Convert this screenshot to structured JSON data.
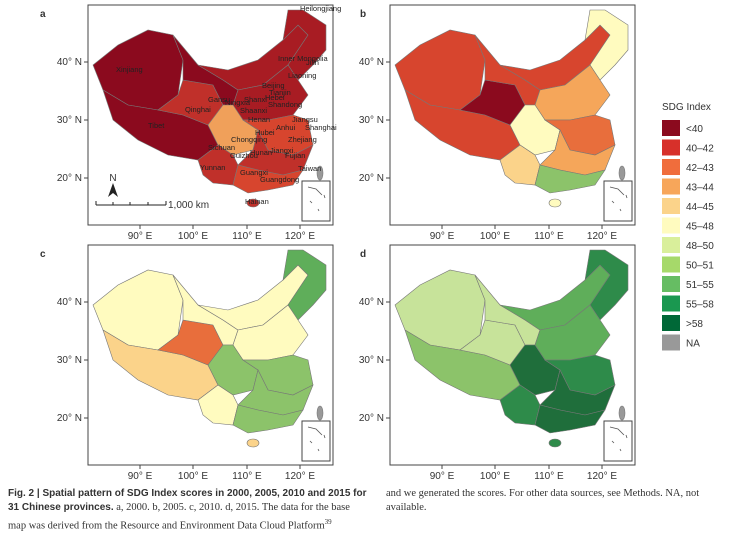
{
  "panels": [
    {
      "letter": "a",
      "lat_ticks": [
        "40° N",
        "30° N",
        "20° N"
      ],
      "lon_ticks": [
        "90° E",
        "100° E",
        "110° E",
        "120° E"
      ]
    },
    {
      "letter": "b",
      "lat_ticks": [
        "40° N",
        "30° N",
        "20° N"
      ],
      "lon_ticks": [
        "90° E",
        "100° E",
        "110° E",
        "120° E"
      ]
    },
    {
      "letter": "c",
      "lat_ticks": [
        "40° N",
        "30° N",
        "20° N"
      ],
      "lon_ticks": [
        "90° E",
        "100° E",
        "110° E",
        "120° E"
      ]
    },
    {
      "letter": "d",
      "lat_ticks": [
        "40° N",
        "30° N",
        "20° N"
      ],
      "lon_ticks": [
        "90° E",
        "100° E",
        "110° E",
        "120° E"
      ]
    }
  ],
  "panel_a": {
    "provinces": [
      "Heilongjiang",
      "Inner Mongolia",
      "Jilin",
      "Liaoning",
      "Xinjiang",
      "Qinghai",
      "Gansu",
      "Ningxia",
      "Shanxi",
      "Beijing",
      "Tianjin",
      "Hebei",
      "Shandong",
      "Shaanxi",
      "Henan",
      "Jiangsu",
      "Tibet",
      "Anhui",
      "Shanghai",
      "Hubei",
      "Chongqing",
      "Zhejiang",
      "Sichuan",
      "Guizhou",
      "Hunan",
      "Jiangxi",
      "Fujian",
      "Taiwan",
      "Yunnan",
      "Guangxi",
      "Guangdong",
      "Hainan"
    ],
    "scale": "1,000 km",
    "north": "N"
  },
  "legend": {
    "title": "SDG Index",
    "items": [
      {
        "label": "<40",
        "color": "#8b0a1e"
      },
      {
        "label": "40–42",
        "color": "#d7302a"
      },
      {
        "label": "42–43",
        "color": "#f06d3c"
      },
      {
        "label": "43–44",
        "color": "#f7a65a"
      },
      {
        "label": "44–45",
        "color": "#fbd38a"
      },
      {
        "label": "45–48",
        "color": "#fffbbf"
      },
      {
        "label": "48–50",
        "color": "#d9ef9b"
      },
      {
        "label": "50–51",
        "color": "#a6d96a"
      },
      {
        "label": "51–55",
        "color": "#66bd63"
      },
      {
        "label": "55–58",
        "color": "#1a9850"
      },
      {
        "label": ">58",
        "color": "#006837"
      },
      {
        "label": "NA",
        "color": "#999999"
      }
    ]
  },
  "caption": {
    "figure": "Fig. 2 | Spatial pattern of SDG Index scores in 2000, 2005, 2010 and 2015 for 31 Chinese provinces.",
    "left": "a, 2000. b, 2005. c, 2010. d, 2015. The data for the base map was derived from the Resource and Environment Data Cloud Platform",
    "ref": "39",
    "right": "and we generated the scores. For other data sources, see Methods. NA, not available."
  }
}
